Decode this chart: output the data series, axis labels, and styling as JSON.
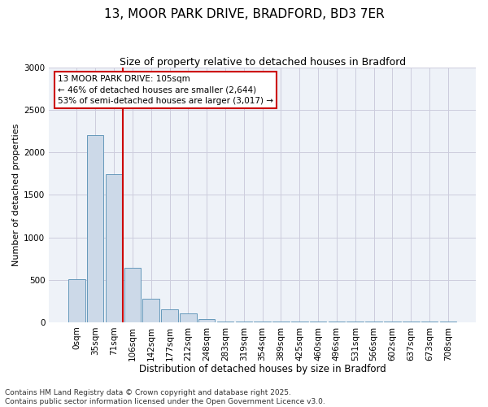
{
  "title": "13, MOOR PARK DRIVE, BRADFORD, BD3 7ER",
  "subtitle": "Size of property relative to detached houses in Bradford",
  "xlabel": "Distribution of detached houses by size in Bradford",
  "ylabel": "Number of detached properties",
  "bar_labels": [
    "0sqm",
    "35sqm",
    "71sqm",
    "106sqm",
    "142sqm",
    "177sqm",
    "212sqm",
    "248sqm",
    "283sqm",
    "319sqm",
    "354sqm",
    "389sqm",
    "425sqm",
    "460sqm",
    "496sqm",
    "531sqm",
    "566sqm",
    "602sqm",
    "637sqm",
    "673sqm",
    "708sqm"
  ],
  "bar_heights": [
    510,
    2200,
    1740,
    640,
    280,
    155,
    105,
    35,
    5,
    5,
    5,
    5,
    5,
    5,
    5,
    5,
    5,
    5,
    5,
    5,
    5
  ],
  "bar_color": "#ccd9e8",
  "bar_edge_color": "#6699bb",
  "grid_color": "#ccccdd",
  "background_color": "#eef2f8",
  "red_line_x": 2.5,
  "annotation_line1": "13 MOOR PARK DRIVE: 105sqm",
  "annotation_line2": "← 46% of detached houses are smaller (2,644)",
  "annotation_line3": "53% of semi-detached houses are larger (3,017) →",
  "annotation_box_edge": "#cc0000",
  "ylim": [
    0,
    3000
  ],
  "yticks": [
    0,
    500,
    1000,
    1500,
    2000,
    2500,
    3000
  ],
  "footnote": "Contains HM Land Registry data © Crown copyright and database right 2025.\nContains public sector information licensed under the Open Government Licence v3.0.",
  "title_fontsize": 11,
  "subtitle_fontsize": 9,
  "xlabel_fontsize": 8.5,
  "ylabel_fontsize": 8,
  "tick_fontsize": 7.5,
  "annotation_fontsize": 7.5,
  "footnote_fontsize": 6.5
}
